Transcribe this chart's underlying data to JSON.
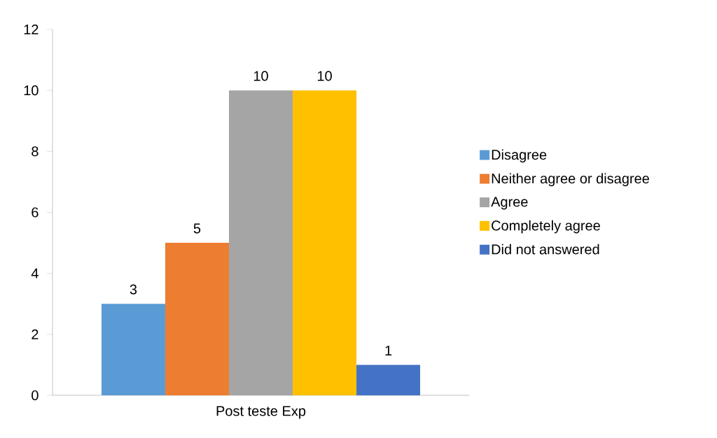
{
  "chart_data": {
    "type": "bar",
    "categories": [
      "Post teste Exp"
    ],
    "series": [
      {
        "name": "Disagree",
        "color": "#5b9bd5",
        "values": [
          3
        ]
      },
      {
        "name": "Neither agree or disagree",
        "color": "#ed7d31",
        "values": [
          5
        ]
      },
      {
        "name": "Agree",
        "color": "#a5a5a5",
        "values": [
          10
        ]
      },
      {
        "name": "Completely agree",
        "color": "#ffc000",
        "values": [
          10
        ]
      },
      {
        "name": "Did not  answered",
        "color": "#4472c4",
        "values": [
          1
        ]
      }
    ],
    "ylim": [
      0,
      12
    ],
    "yticks": [
      0,
      2,
      4,
      6,
      8,
      10,
      12
    ],
    "data_labels": true,
    "legend": "right",
    "grid": false
  }
}
